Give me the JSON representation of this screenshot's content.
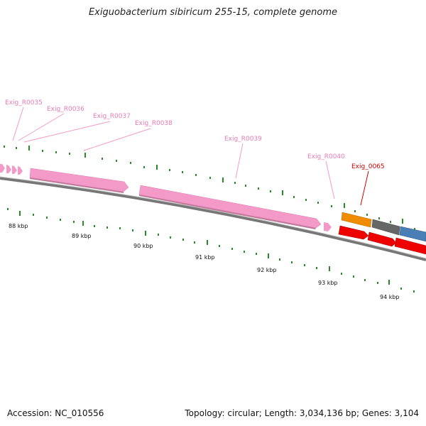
{
  "title": "Exiguobacterium sibiricum 255-15, complete genome",
  "footer": {
    "accession": "Accession: NC_010556",
    "summary": "Topology: circular; Length: 3,034,136 bp; Genes: 3,104"
  },
  "colors": {
    "rna_feature": "#f49ac8",
    "rna_label": "#e87bb4",
    "gene_label": "#cc0000",
    "forward_strand_gene": "#ee0000",
    "reverse_orange": "#f08c00",
    "reverse_gray": "#666666",
    "reverse_blue": "#4a7fb5",
    "backbone": "#888888",
    "tick": "#2a8a2a"
  },
  "features": [
    {
      "label": "Exig_R0035"
    },
    {
      "label": "Exig_R0036"
    },
    {
      "label": "Exig_R0037"
    },
    {
      "label": "Exig_R0038"
    },
    {
      "label": "Exig_R0039"
    },
    {
      "label": "Exig_R0040"
    },
    {
      "label": "Exig_0065"
    }
  ],
  "scale": [
    {
      "label": "88 kbp"
    },
    {
      "label": "89 kbp"
    },
    {
      "label": "90 kbp"
    },
    {
      "label": "91 kbp"
    },
    {
      "label": "92 kbp"
    },
    {
      "label": "93 kbp"
    },
    {
      "label": "94 kbp"
    }
  ]
}
